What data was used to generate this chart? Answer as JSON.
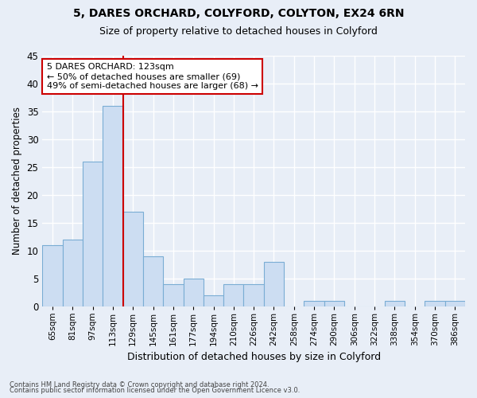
{
  "title": "5, DARES ORCHARD, COLYFORD, COLYTON, EX24 6RN",
  "subtitle": "Size of property relative to detached houses in Colyford",
  "xlabel": "Distribution of detached houses by size in Colyford",
  "ylabel": "Number of detached properties",
  "categories": [
    "65sqm",
    "81sqm",
    "97sqm",
    "113sqm",
    "129sqm",
    "145sqm",
    "161sqm",
    "177sqm",
    "194sqm",
    "210sqm",
    "226sqm",
    "242sqm",
    "258sqm",
    "274sqm",
    "290sqm",
    "306sqm",
    "322sqm",
    "338sqm",
    "354sqm",
    "370sqm",
    "386sqm"
  ],
  "values": [
    11,
    12,
    26,
    36,
    17,
    9,
    4,
    5,
    2,
    4,
    4,
    8,
    0,
    1,
    1,
    0,
    0,
    1,
    0,
    1,
    1
  ],
  "bar_color": "#ccddf2",
  "bar_edge_color": "#7aadd4",
  "reference_line_color": "#cc0000",
  "reference_line_index": 3,
  "annotation_text": "5 DARES ORCHARD: 123sqm\n← 50% of detached houses are smaller (69)\n49% of semi-detached houses are larger (68) →",
  "annotation_box_color": "white",
  "annotation_box_edge_color": "#cc0000",
  "ylim": [
    0,
    45
  ],
  "yticks": [
    0,
    5,
    10,
    15,
    20,
    25,
    30,
    35,
    40,
    45
  ],
  "footer_line1": "Contains HM Land Registry data © Crown copyright and database right 2024.",
  "footer_line2": "Contains public sector information licensed under the Open Government Licence v3.0.",
  "background_color": "#e8eef7",
  "grid_color": "white",
  "title_fontsize": 10,
  "subtitle_fontsize": 9
}
